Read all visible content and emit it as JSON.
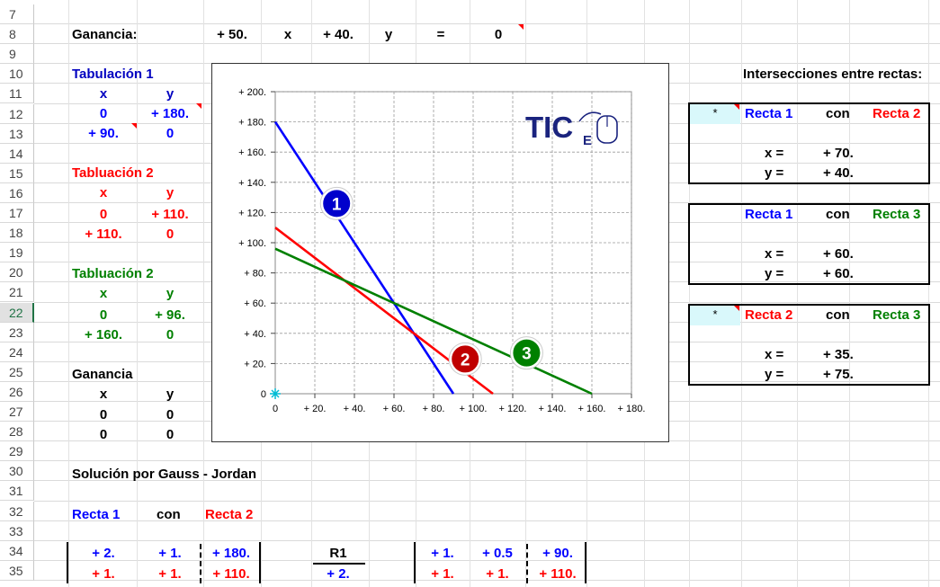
{
  "rows": [
    "7",
    "8",
    "9",
    "10",
    "11",
    "12",
    "13",
    "14",
    "15",
    "16",
    "17",
    "18",
    "19",
    "20",
    "21",
    "22",
    "23",
    "24",
    "25",
    "26",
    "27",
    "28",
    "29",
    "30",
    "31",
    "32",
    "33",
    "34",
    "35"
  ],
  "active_row": "22",
  "ganancia": {
    "label": "Ganancia:",
    "a": "+ 50.",
    "x": "x",
    "b": "+ 40.",
    "y": "y",
    "eq": "=",
    "val": "0"
  },
  "tab1": {
    "title": "Tabulación 1",
    "hx": "x",
    "hy": "y",
    "r1x": "0",
    "r1y": "+ 180.",
    "r2x": "+ 90.",
    "r2y": "0"
  },
  "tab2": {
    "title": "Tabluación 2",
    "hx": "x",
    "hy": "y",
    "r1x": "0",
    "r1y": "+ 110.",
    "r2x": "+ 110.",
    "r2y": "0"
  },
  "tab3": {
    "title": "Tabluación 2",
    "hx": "x",
    "hy": "y",
    "r1x": "0",
    "r1y": "+ 96.",
    "r2x": "+ 160.",
    "r2y": "0"
  },
  "gan": {
    "title": "Ganancia",
    "hx": "x",
    "hy": "y",
    "r1x": "0",
    "r1y": "0",
    "r2x": "0",
    "r2y": "0"
  },
  "intersecciones": {
    "title": "Intersecciones entre rectas:",
    "boxes": [
      {
        "star": "*",
        "a": "Recta 1",
        "con": "con",
        "b": "Recta 2",
        "xl": "x =",
        "xv": "+ 70.",
        "yl": "y =",
        "yv": "+ 40."
      },
      {
        "star": "",
        "a": "Recta 1",
        "con": "con",
        "b": "Recta 3",
        "xl": "x =",
        "xv": "+ 60.",
        "yl": "y =",
        "yv": "+ 60."
      },
      {
        "star": "*",
        "a": "Recta 2",
        "con": "con",
        "b": "Recta 3",
        "xl": "x =",
        "xv": "+ 35.",
        "yl": "y =",
        "yv": "+ 75."
      }
    ]
  },
  "gauss": {
    "title": "Solución por Gauss - Jordan",
    "a": "Recta 1",
    "con": "con",
    "b": "Recta 2",
    "m1": [
      "+ 2.",
      "+ 1.",
      "+ 180."
    ],
    "m2": [
      "+ 1.",
      "+ 1.",
      "+ 110."
    ],
    "r_label": "R1",
    "r_val": "+ 2.",
    "n1": [
      "+ 1.",
      "+ 0.5",
      "+ 90."
    ],
    "n2": [
      "+ 1.",
      "+ 1.",
      "+ 110."
    ]
  },
  "logo": {
    "text": "TIC",
    "sub": "E"
  },
  "chart_data": {
    "type": "line",
    "xlim": [
      0,
      180
    ],
    "ylim": [
      0,
      200
    ],
    "xticks": [
      "0",
      "+ 20.",
      "+ 40.",
      "+ 60.",
      "+ 80.",
      "+ 100.",
      "+ 120.",
      "+ 140.",
      "+ 160.",
      "+ 180."
    ],
    "yticks": [
      "0",
      "+ 20.",
      "+ 40.",
      "+ 60.",
      "+ 80.",
      "+ 100.",
      "+ 120.",
      "+ 140.",
      "+ 160.",
      "+ 180.",
      "+ 200."
    ],
    "grid": true,
    "series": [
      {
        "name": "1",
        "color": "#0000ff",
        "x": [
          0,
          90
        ],
        "y": [
          180,
          0
        ],
        "marker_at": [
          31,
          126
        ]
      },
      {
        "name": "2",
        "color": "#ff0000",
        "x": [
          0,
          110
        ],
        "y": [
          110,
          0
        ],
        "marker_at": [
          96,
          23
        ]
      },
      {
        "name": "3",
        "color": "#008000",
        "x": [
          0,
          160
        ],
        "y": [
          96,
          0
        ],
        "marker_at": [
          127,
          27
        ]
      }
    ],
    "marker_colors": [
      "#0000cc",
      "#c00000",
      "#008000"
    ]
  }
}
